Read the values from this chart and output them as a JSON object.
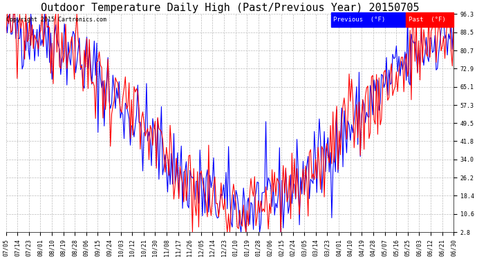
{
  "title": "Outdoor Temperature Daily High (Past/Previous Year) 20150705",
  "copyright": "Copyright 2015 Cartronics.com",
  "legend_labels": [
    "Previous  (°F)",
    "Past  (°F)"
  ],
  "ylabel_values": [
    96.3,
    88.5,
    80.7,
    72.9,
    65.1,
    57.3,
    49.5,
    41.8,
    34.0,
    26.2,
    18.4,
    10.6,
    2.8
  ],
  "ymin": 2.8,
  "ymax": 96.3,
  "x_tick_labels": [
    "07/05",
    "07/14",
    "07/23",
    "08/01",
    "08/10",
    "08/19",
    "08/28",
    "09/06",
    "09/15",
    "09/24",
    "10/03",
    "10/12",
    "10/21",
    "10/30",
    "11/08",
    "11/17",
    "11/26",
    "12/05",
    "12/14",
    "12/23",
    "01/10",
    "01/19",
    "01/28",
    "02/06",
    "02/15",
    "02/24",
    "03/05",
    "03/14",
    "03/23",
    "04/01",
    "04/10",
    "04/19",
    "04/28",
    "05/07",
    "05/16",
    "05/25",
    "06/03",
    "06/12",
    "06/21",
    "06/30"
  ],
  "grid_color": "#bbbbbb",
  "background_color": "#ffffff",
  "title_fontsize": 11,
  "copyright_fontsize": 6,
  "tick_fontsize": 6,
  "line_width": 0.8,
  "blue_color": "#0000ff",
  "red_color": "#ff0000",
  "n_points": 361
}
